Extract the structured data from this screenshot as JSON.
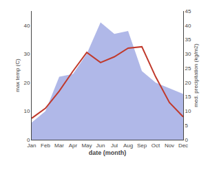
{
  "chart_data": {
    "type": "line",
    "categories": [
      "Jan",
      "Feb",
      "Mar",
      "Apr",
      "May",
      "Jun",
      "Jul",
      "Aug",
      "Sep",
      "Oct",
      "Nov",
      "Dec"
    ],
    "xlabel": "date (month)",
    "ylabel": "max temp (C)",
    "y2label": "med. precipitation (kg/m2)",
    "series": [
      {
        "type": "area",
        "axis": "y2",
        "color": "#b0b8e8",
        "values": [
          6,
          10,
          22,
          23,
          30,
          41,
          37,
          38,
          24,
          20,
          18,
          16
        ]
      },
      {
        "type": "line",
        "color": "#c0392b",
        "values": [
          7.5,
          11.0,
          17.0,
          24.0,
          30.5,
          27.0,
          29.0,
          32.0,
          32.5,
          22.0,
          13.0,
          8.0
        ]
      }
    ],
    "ylim": [
      0,
      45
    ],
    "yticks": [
      0,
      10,
      20,
      30,
      40
    ],
    "y2lim": [
      0,
      45
    ],
    "y2ticks": [
      0,
      5,
      10,
      15,
      20,
      25,
      30,
      35,
      40,
      45
    ],
    "grid": false
  }
}
